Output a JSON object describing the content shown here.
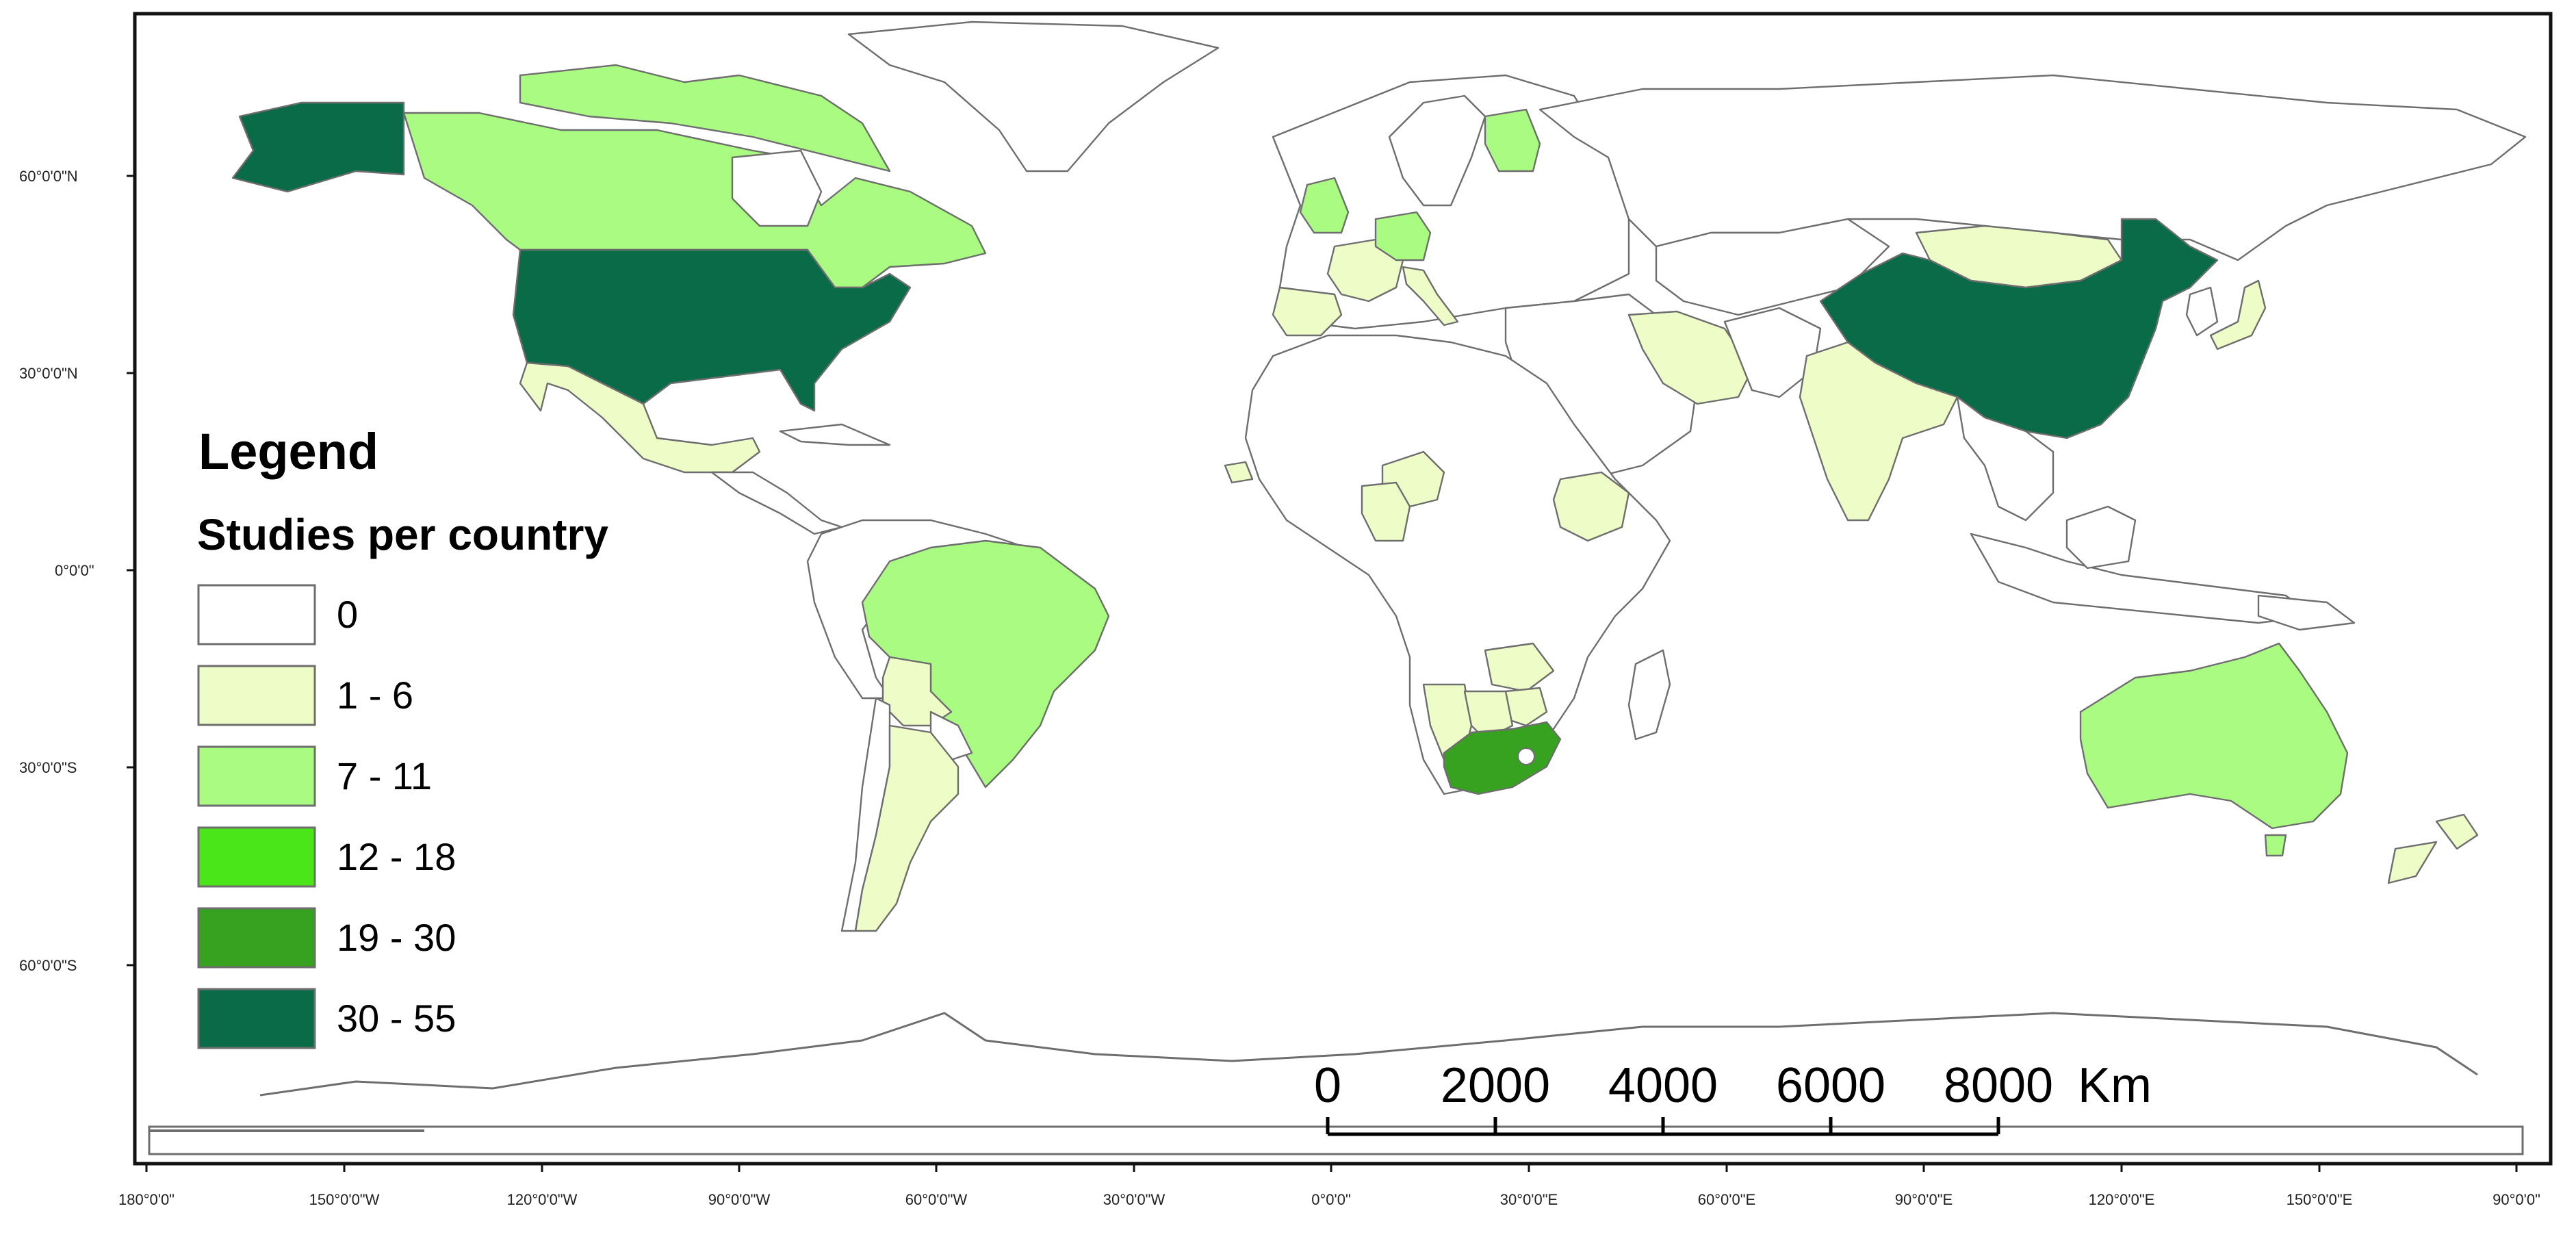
{
  "legend": {
    "title": "Legend",
    "subtitle": "Studies per country",
    "classes": [
      {
        "label": "0",
        "color": "#ffffff"
      },
      {
        "label": "1 - 6",
        "color": "#eefcc8"
      },
      {
        "label": "7 - 11",
        "color": "#aafb82"
      },
      {
        "label": "12 - 18",
        "color": "#4ae61a"
      },
      {
        "label": "19 - 30",
        "color": "#37a21f"
      },
      {
        "label": "30 - 55",
        "color": "#0a6b48"
      }
    ]
  },
  "scale_bar": {
    "labels": [
      "0",
      "2000",
      "4000",
      "6000",
      "8000"
    ],
    "unit": "Km"
  },
  "axes": {
    "left_labels": [
      "60°0'0\"N",
      "30°0'0\"N",
      "0°0'0\"",
      "30°0'0\"S",
      "60°0'0\"S"
    ],
    "bottom_labels": [
      "180°0'0\"",
      "150°0'0\"W",
      "120°0'0\"W",
      "90°0'0\"W",
      "60°0'0\"W",
      "30°0'0\"W",
      "0°0'0\"",
      "30°0'0\"E",
      "60°0'0\"E",
      "90°0'0\"E",
      "120°0'0\"E",
      "150°0'0\"E",
      "90°0'0\""
    ]
  },
  "countries": [
    {
      "name": "United States",
      "class": "30 - 55"
    },
    {
      "name": "Alaska",
      "class": "30 - 55"
    },
    {
      "name": "China",
      "class": "30 - 55"
    },
    {
      "name": "South Africa",
      "class": "19 - 30"
    },
    {
      "name": "Canada",
      "class": "7 - 11"
    },
    {
      "name": "Brazil",
      "class": "7 - 11"
    },
    {
      "name": "Australia",
      "class": "7 - 11"
    },
    {
      "name": "Germany",
      "class": "7 - 11"
    },
    {
      "name": "United Kingdom",
      "class": "7 - 11"
    },
    {
      "name": "Finland",
      "class": "7 - 11"
    },
    {
      "name": "Mexico",
      "class": "1 - 6"
    },
    {
      "name": "Argentina",
      "class": "1 - 6"
    },
    {
      "name": "Bolivia",
      "class": "1 - 6"
    },
    {
      "name": "India",
      "class": "1 - 6"
    },
    {
      "name": "Iran",
      "class": "1 - 6"
    },
    {
      "name": "Mongolia",
      "class": "1 - 6"
    },
    {
      "name": "Japan",
      "class": "1 - 6"
    },
    {
      "name": "France",
      "class": "1 - 6"
    },
    {
      "name": "Spain",
      "class": "1 - 6"
    },
    {
      "name": "Italy",
      "class": "1 - 6"
    },
    {
      "name": "Nigeria",
      "class": "1 - 6"
    },
    {
      "name": "Cameroon",
      "class": "1 - 6"
    },
    {
      "name": "Ethiopia",
      "class": "1 - 6"
    },
    {
      "name": "Zambia",
      "class": "1 - 6"
    },
    {
      "name": "Zimbabwe",
      "class": "1 - 6"
    },
    {
      "name": "Botswana",
      "class": "1 - 6"
    },
    {
      "name": "Namibia",
      "class": "1 - 6"
    },
    {
      "name": "New Zealand",
      "class": "1 - 6"
    }
  ]
}
